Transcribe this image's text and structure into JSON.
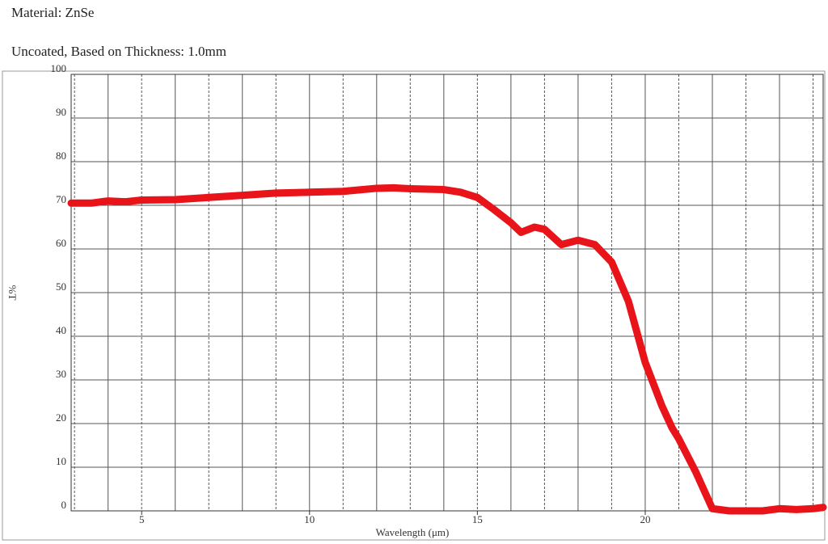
{
  "header": {
    "material": "Material: ZnSe",
    "subtitle": "Uncoated, Based on Thickness: 1.0mm"
  },
  "chart_data": {
    "type": "line",
    "xlabel": "Wavelength (μm)",
    "ylabel": "%T",
    "xlim": [
      2.9,
      25.3
    ],
    "ylim": [
      0,
      100
    ],
    "xticks": [
      5,
      10,
      15,
      20
    ],
    "yticks": [
      0,
      10,
      20,
      30,
      40,
      50,
      60,
      70,
      80,
      90,
      100
    ],
    "xgrid": [
      3,
      4,
      5,
      6,
      7,
      8,
      9,
      10,
      11,
      12,
      13,
      14,
      15,
      16,
      17,
      18,
      19,
      20,
      21,
      22,
      23,
      24,
      25
    ],
    "grid": true,
    "series": [
      {
        "color": "#e8141a",
        "x": [
          2.9,
          3.5,
          4,
          4.5,
          5,
          6,
          7,
          8,
          9,
          10,
          11,
          12,
          12.5,
          13,
          14,
          14.5,
          15,
          15.5,
          16,
          16.3,
          16.7,
          17,
          17.5,
          18,
          18.5,
          19,
          19.5,
          20,
          20.5,
          20.8,
          21,
          21.5,
          22,
          22.5,
          23,
          23.5,
          24,
          24.5,
          25,
          25.3
        ],
        "values": [
          70.5,
          70.5,
          71,
          70.8,
          71.2,
          71.3,
          71.8,
          72.3,
          72.8,
          73,
          73.2,
          73.9,
          74,
          73.8,
          73.6,
          73,
          71.8,
          69,
          66,
          63.8,
          65,
          64.5,
          61,
          62,
          61,
          57,
          48,
          34,
          24,
          19,
          16.5,
          9,
          0.5,
          0,
          0,
          0,
          0.5,
          0.3,
          0.5,
          0.8
        ]
      }
    ]
  }
}
